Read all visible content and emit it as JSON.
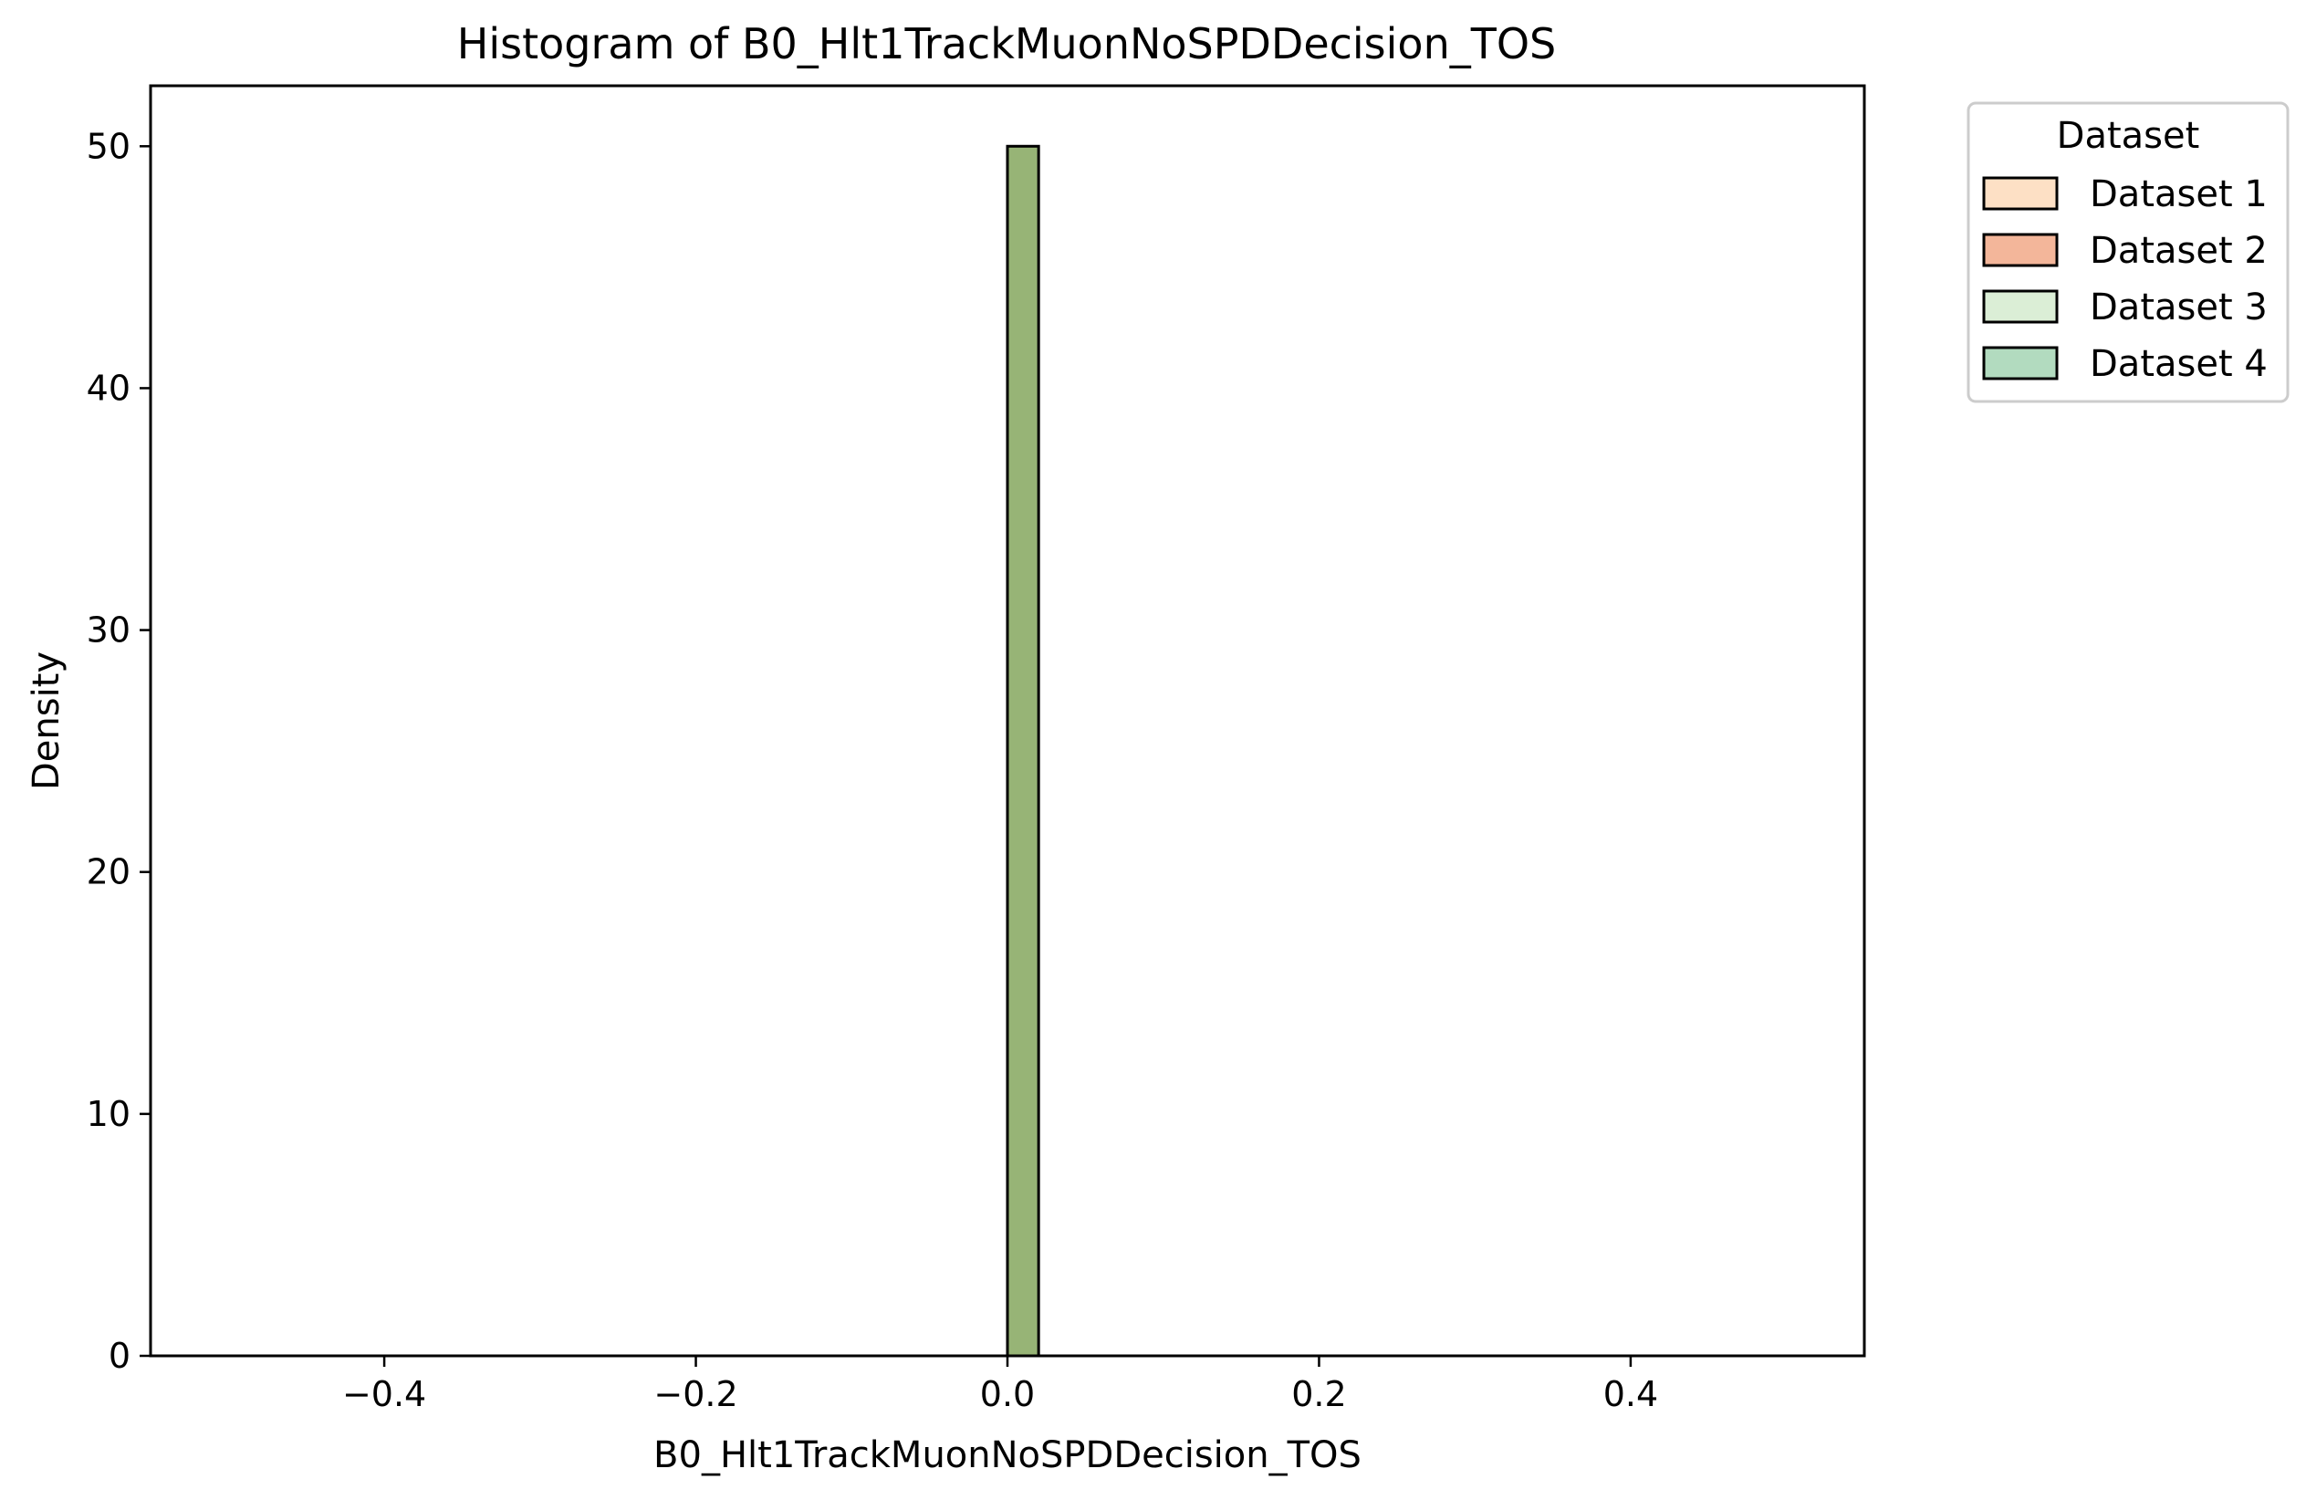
{
  "chart_data": {
    "type": "bar",
    "title": "Histogram of B0_Hlt1TrackMuonNoSPDDecision_TOS",
    "xlabel": "B0_Hlt1TrackMuonNoSPDDecision_TOS",
    "ylabel": "Density",
    "xlim": [
      -0.55,
      0.55
    ],
    "ylim": [
      0,
      52.5
    ],
    "xticks": [
      -0.4,
      -0.2,
      0.0,
      0.2,
      0.4
    ],
    "xtick_labels": [
      "−0.4",
      "−0.2",
      "0.0",
      "0.2",
      "0.4"
    ],
    "yticks": [
      0,
      10,
      20,
      30,
      40,
      50
    ],
    "ytick_labels": [
      "0",
      "10",
      "20",
      "30",
      "40",
      "50"
    ],
    "bin_range": [
      -0.5,
      0.5
    ],
    "grid": false,
    "bars": [
      {
        "x0": 0.0,
        "x1": 0.02,
        "value": 50,
        "color": "#97b476"
      }
    ],
    "legend": {
      "title": "Dataset",
      "placement": "outside-top-right",
      "entries": [
        {
          "label": "Dataset 1",
          "color": "#fde0c5"
        },
        {
          "label": "Dataset 2",
          "color": "#f3b69a"
        },
        {
          "label": "Dataset 3",
          "color": "#dbeed6"
        },
        {
          "label": "Dataset 4",
          "color": "#b2dbbf"
        }
      ]
    }
  }
}
